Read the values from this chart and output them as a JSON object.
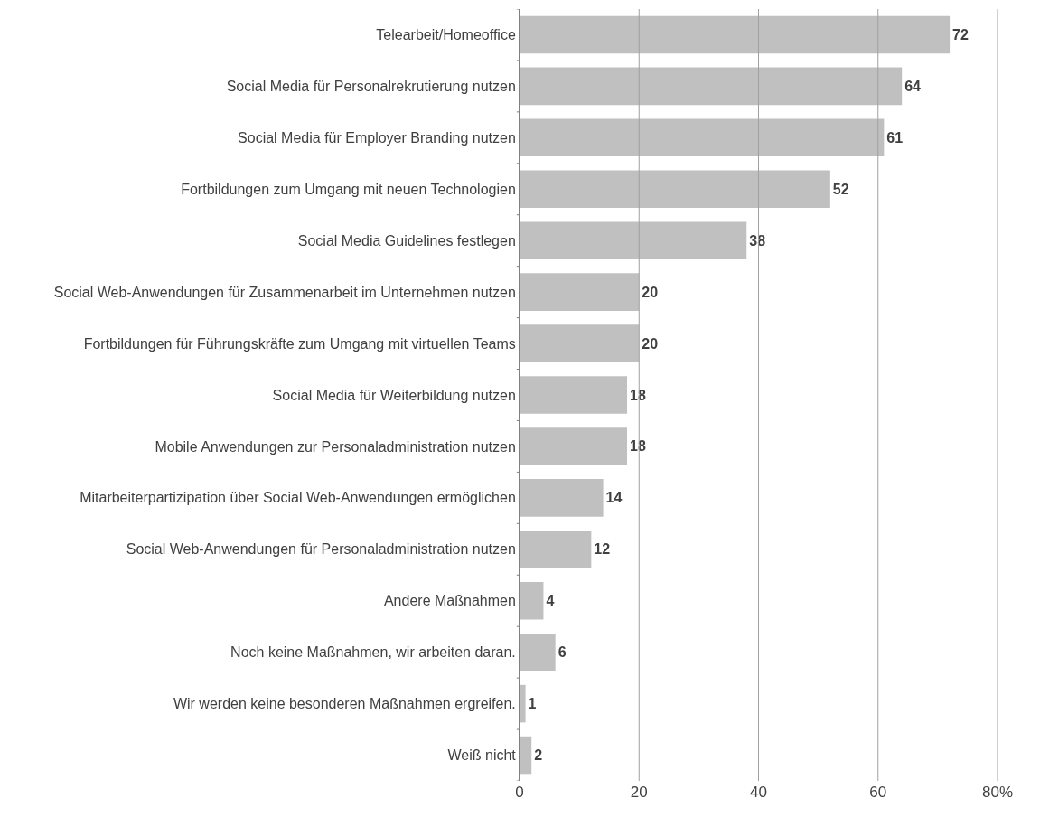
{
  "chart_data": {
    "type": "bar",
    "orientation": "horizontal",
    "categories": [
      "Telearbeit/Homeoffice",
      "Social Media für Personalrekrutierung nutzen",
      "Social Media für Employer Branding nutzen",
      "Fortbildungen zum Umgang mit neuen Technologien",
      "Social Media Guidelines festlegen",
      "Social Web-Anwendungen für Zusammenarbeit im Unternehmen nutzen",
      "Fortbildungen für Führungskräfte zum Umgang mit virtuellen Teams",
      "Social Media für Weiterbildung nutzen",
      "Mobile Anwendungen zur Personaladministration nutzen",
      "Mitarbeiterpartizipation über Social Web-Anwendungen ermöglichen",
      "Social Web-Anwendungen für Personaladministration nutzen",
      "Andere Maßnahmen",
      "Noch keine Maßnahmen, wir arbeiten daran.",
      "Wir werden keine besonderen Maßnahmen ergreifen.",
      "Weiß nicht"
    ],
    "values": [
      72,
      64,
      61,
      52,
      38,
      20,
      20,
      18,
      18,
      14,
      12,
      4,
      6,
      1,
      2
    ],
    "color": "#c0c0c0",
    "data_labels": true,
    "xlim": [
      0,
      80
    ],
    "xticks": [
      0,
      20,
      40,
      60,
      {
        "value": 80,
        "label": "80%"
      }
    ],
    "grid": "x"
  }
}
